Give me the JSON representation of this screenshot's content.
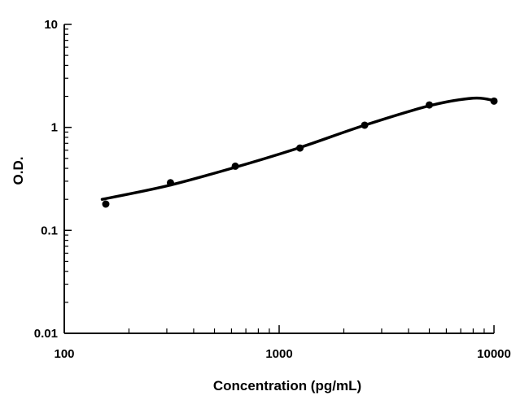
{
  "chart_data": {
    "type": "scatter",
    "title": "",
    "xlabel": "Concentration (pg/mL)",
    "ylabel": "O.D.",
    "x_scale": "log",
    "y_scale": "log",
    "xlim": [
      100,
      10000
    ],
    "ylim": [
      0.01,
      10
    ],
    "x_ticks": [
      100,
      1000,
      10000
    ],
    "x_tick_labels": [
      "100",
      "1000",
      "10000"
    ],
    "y_ticks": [
      0.01,
      0.1,
      1,
      10
    ],
    "y_tick_labels": [
      "0.01",
      "0.1",
      "1",
      "10"
    ],
    "grid": false,
    "legend": "none",
    "points": {
      "x": [
        156,
        312,
        625,
        1250,
        2500,
        5000,
        10000
      ],
      "y": [
        0.18,
        0.29,
        0.42,
        0.63,
        1.05,
        1.65,
        1.8
      ]
    },
    "fit_curve": {
      "x": [
        150,
        300,
        600,
        1200,
        2500,
        5000,
        8000,
        10000
      ],
      "y": [
        0.2,
        0.27,
        0.4,
        0.62,
        1.05,
        1.62,
        1.92,
        1.82
      ]
    },
    "colors": {
      "line": "#000000",
      "points": "#000000"
    }
  }
}
